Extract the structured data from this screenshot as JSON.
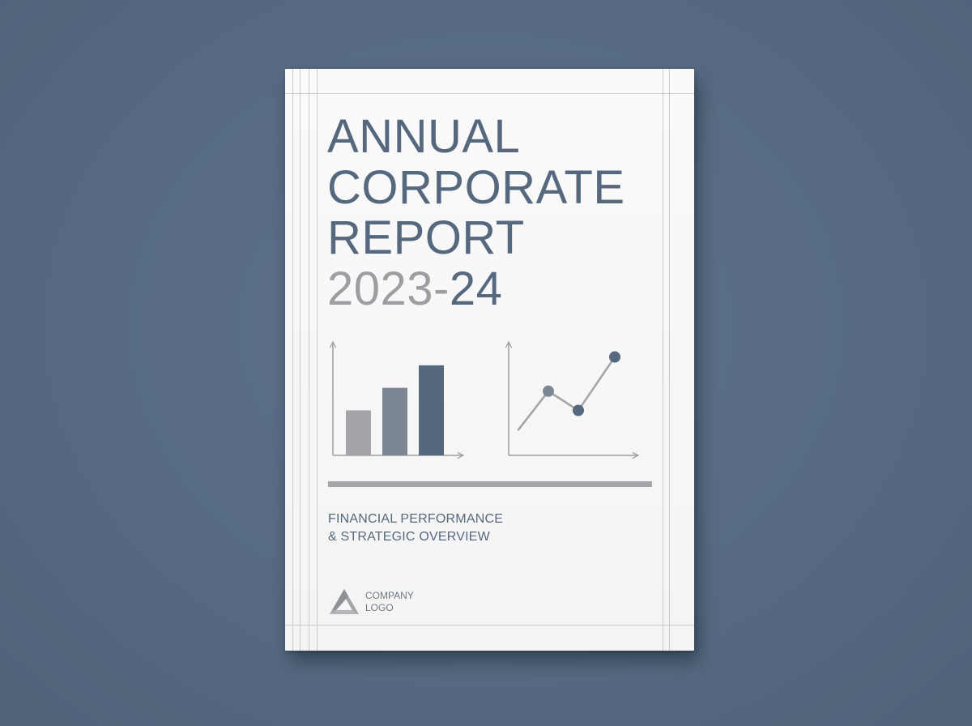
{
  "cover": {
    "title_lines": [
      "ANNUAL",
      "CORPORATE",
      "REPORT"
    ],
    "year_gray": "2023-",
    "year_blue": "24",
    "subtitle_lines": [
      "FINANCIAL PERFORMANCE",
      "& STRATEGIC OVERVIEW"
    ],
    "logo_lines": [
      "COMPANY",
      "LOGO"
    ]
  },
  "colors": {
    "background": "#566b82",
    "paper": "#f6f6f6",
    "title": "#56687d",
    "year_gray": "#9c9ea1",
    "bar_light": "#a3a5a8",
    "bar_mid": "#7d8794",
    "bar_dark": "#56687d",
    "rule": "#a3a5a8"
  },
  "chart_data": [
    {
      "type": "bar",
      "categories": [
        "",
        "",
        ""
      ],
      "values": [
        1,
        1.5,
        2
      ],
      "title": "",
      "xlabel": "",
      "ylabel": "",
      "ylim": [
        0,
        2.4
      ]
    },
    {
      "type": "line",
      "x": [
        0,
        1,
        2,
        3
      ],
      "values": [
        0.6,
        1.5,
        1.05,
        2.3
      ],
      "markers": [
        false,
        true,
        true,
        true
      ],
      "title": "",
      "xlabel": "",
      "ylabel": "",
      "ylim": [
        0,
        2.8
      ]
    }
  ]
}
